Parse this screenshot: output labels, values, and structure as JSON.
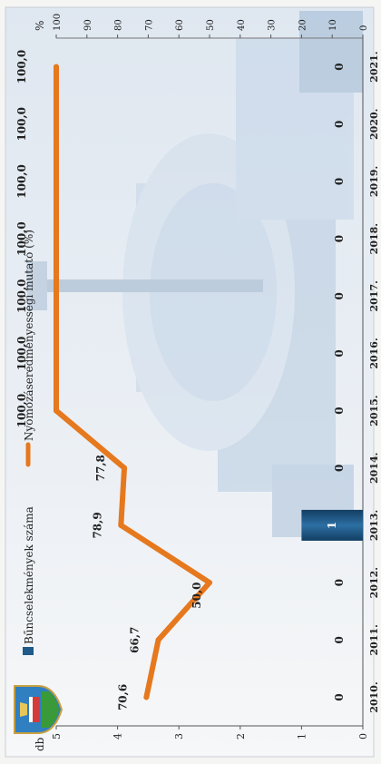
{
  "chart_data": {
    "type": "bar+line",
    "categories": [
      "2010.",
      "2011.",
      "2012.",
      "2013.",
      "2014.",
      "2015.",
      "2016.",
      "2017.",
      "2018.",
      "2019.",
      "2020.",
      "2021."
    ],
    "series": [
      {
        "name": "Bűncselekmények száma",
        "kind": "bar",
        "axis": "left",
        "color": "#1f5a8a",
        "values": [
          0,
          0,
          0,
          1,
          0,
          0,
          0,
          0,
          0,
          0,
          0,
          0
        ]
      },
      {
        "name": "Nyomozáseredményességi mutató (%)",
        "kind": "line",
        "axis": "right",
        "color": "#e6781e",
        "values": [
          70.6,
          66.7,
          50.0,
          78.9,
          77.8,
          100.0,
          100.0,
          100.0,
          100.0,
          100.0,
          100.0,
          100.0
        ],
        "labels": [
          "70,6",
          "66,7",
          "50,0",
          "78,9",
          "77,8",
          "100,0",
          "100,0",
          "100,0",
          "100,0",
          "100,0",
          "100,0",
          "100,0"
        ]
      }
    ],
    "bar_labels": [
      "0",
      "0",
      "0",
      "1",
      "0",
      "0",
      "0",
      "0",
      "0",
      "0",
      "0",
      "0"
    ],
    "y_left": {
      "label": "db",
      "ylim": [
        0,
        5
      ],
      "ticks": [
        "0",
        "1",
        "2",
        "3",
        "4",
        "5"
      ]
    },
    "y_right": {
      "label": "%",
      "ylim": [
        0,
        100
      ],
      "ticks": [
        "0",
        "10",
        "20",
        "30",
        "40",
        "50",
        "60",
        "70",
        "80",
        "90",
        "100"
      ]
    },
    "legend_position": "top",
    "grid": false
  }
}
